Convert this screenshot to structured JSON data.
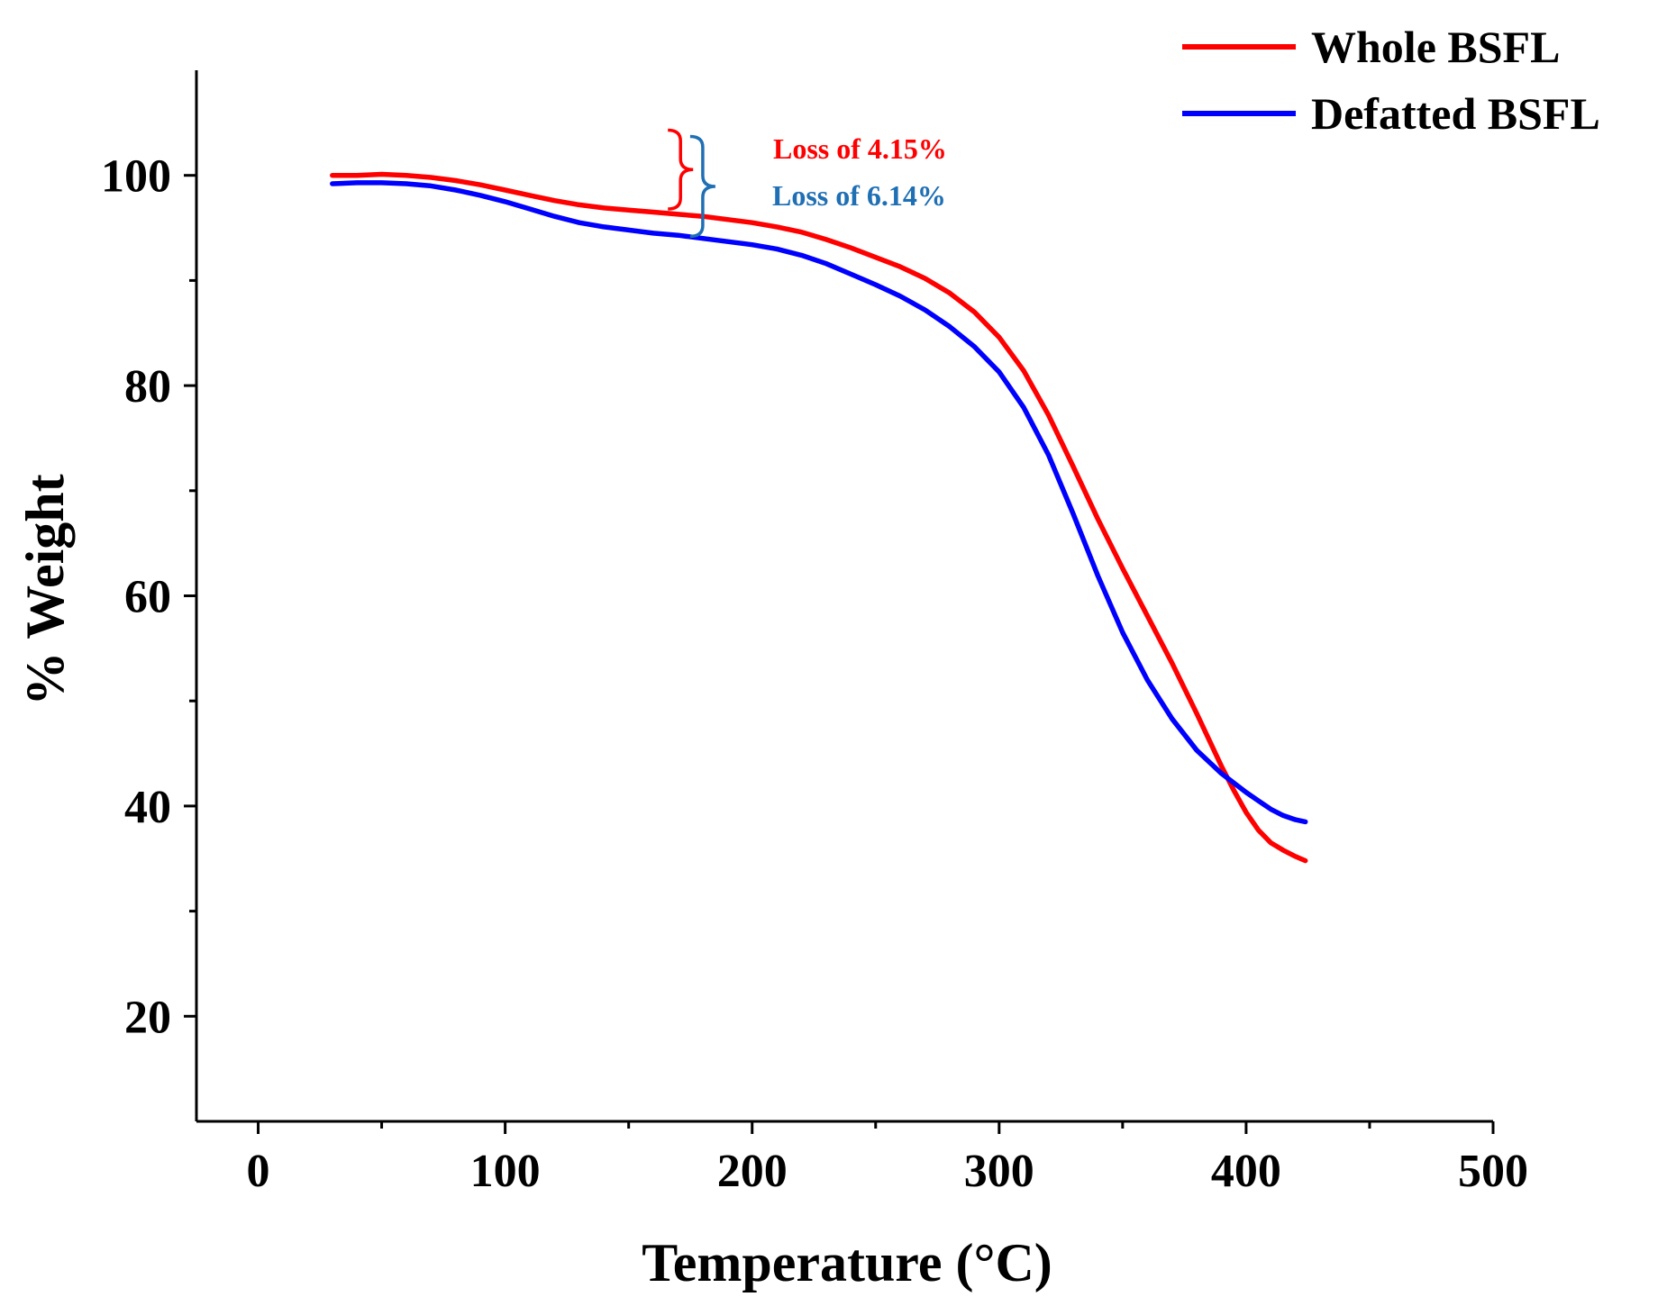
{
  "chart_data": {
    "type": "line",
    "title": "",
    "xlabel": "Temperature (°C)",
    "ylabel": "% Weight",
    "xlim": [
      -25,
      500
    ],
    "ylim": [
      10,
      110
    ],
    "xticks": [
      0,
      100,
      200,
      300,
      400,
      500
    ],
    "xtick_labels": [
      "0",
      "100",
      "200",
      "300",
      "400",
      "500"
    ],
    "yticks": [
      20,
      40,
      60,
      80,
      100
    ],
    "ytick_labels": [
      "20",
      "40",
      "60",
      "80",
      "100"
    ],
    "x_minor_ticks": [
      50,
      150,
      250,
      350,
      450
    ],
    "y_minor_ticks": [
      30,
      50,
      70,
      90
    ],
    "grid": false,
    "legend_position": "top-right",
    "series": [
      {
        "name": "Whole BSFL",
        "color": "#ff0000",
        "x": [
          30,
          40,
          50,
          60,
          70,
          80,
          90,
          100,
          110,
          120,
          130,
          140,
          150,
          160,
          170,
          180,
          190,
          200,
          210,
          220,
          230,
          240,
          250,
          260,
          270,
          280,
          290,
          300,
          310,
          320,
          330,
          340,
          350,
          360,
          370,
          380,
          390,
          395,
          400,
          405,
          410,
          415,
          420,
          424
        ],
        "y": [
          100.0,
          100.0,
          100.1,
          100.0,
          99.8,
          99.5,
          99.1,
          98.6,
          98.1,
          97.6,
          97.2,
          96.9,
          96.7,
          96.5,
          96.3,
          96.1,
          95.8,
          95.5,
          95.1,
          94.6,
          93.9,
          93.1,
          92.2,
          91.3,
          90.2,
          88.8,
          87.0,
          84.6,
          81.4,
          77.2,
          72.3,
          67.3,
          62.6,
          58.1,
          53.6,
          48.8,
          43.8,
          41.5,
          39.4,
          37.7,
          36.5,
          35.8,
          35.2,
          34.8
        ]
      },
      {
        "name": "Defatted BSFL",
        "color": "#0000ff",
        "x": [
          30,
          40,
          50,
          60,
          70,
          80,
          90,
          100,
          110,
          120,
          130,
          140,
          150,
          160,
          170,
          180,
          190,
          200,
          210,
          220,
          230,
          240,
          250,
          260,
          270,
          280,
          290,
          300,
          310,
          320,
          330,
          340,
          350,
          360,
          370,
          380,
          390,
          395,
          400,
          405,
          410,
          415,
          420,
          424
        ],
        "y": [
          99.2,
          99.3,
          99.3,
          99.2,
          99.0,
          98.6,
          98.1,
          97.5,
          96.8,
          96.1,
          95.5,
          95.1,
          94.8,
          94.5,
          94.3,
          94.0,
          93.7,
          93.4,
          93.0,
          92.4,
          91.6,
          90.6,
          89.6,
          88.5,
          87.2,
          85.6,
          83.7,
          81.3,
          77.9,
          73.4,
          67.8,
          61.9,
          56.5,
          52.0,
          48.3,
          45.3,
          43.1,
          42.2,
          41.3,
          40.5,
          39.7,
          39.1,
          38.7,
          38.5
        ]
      }
    ],
    "annotations": [
      {
        "text": "Loss of 4.15%",
        "color": "#ff0000",
        "bracket_x": 171,
        "y_top": 104.3,
        "y_bottom": 96.8
      },
      {
        "text": "Loss of 6.14%",
        "color": "#1f6fb4",
        "bracket_x": 180,
        "y_top": 103.7,
        "y_bottom": 94.2
      }
    ]
  }
}
